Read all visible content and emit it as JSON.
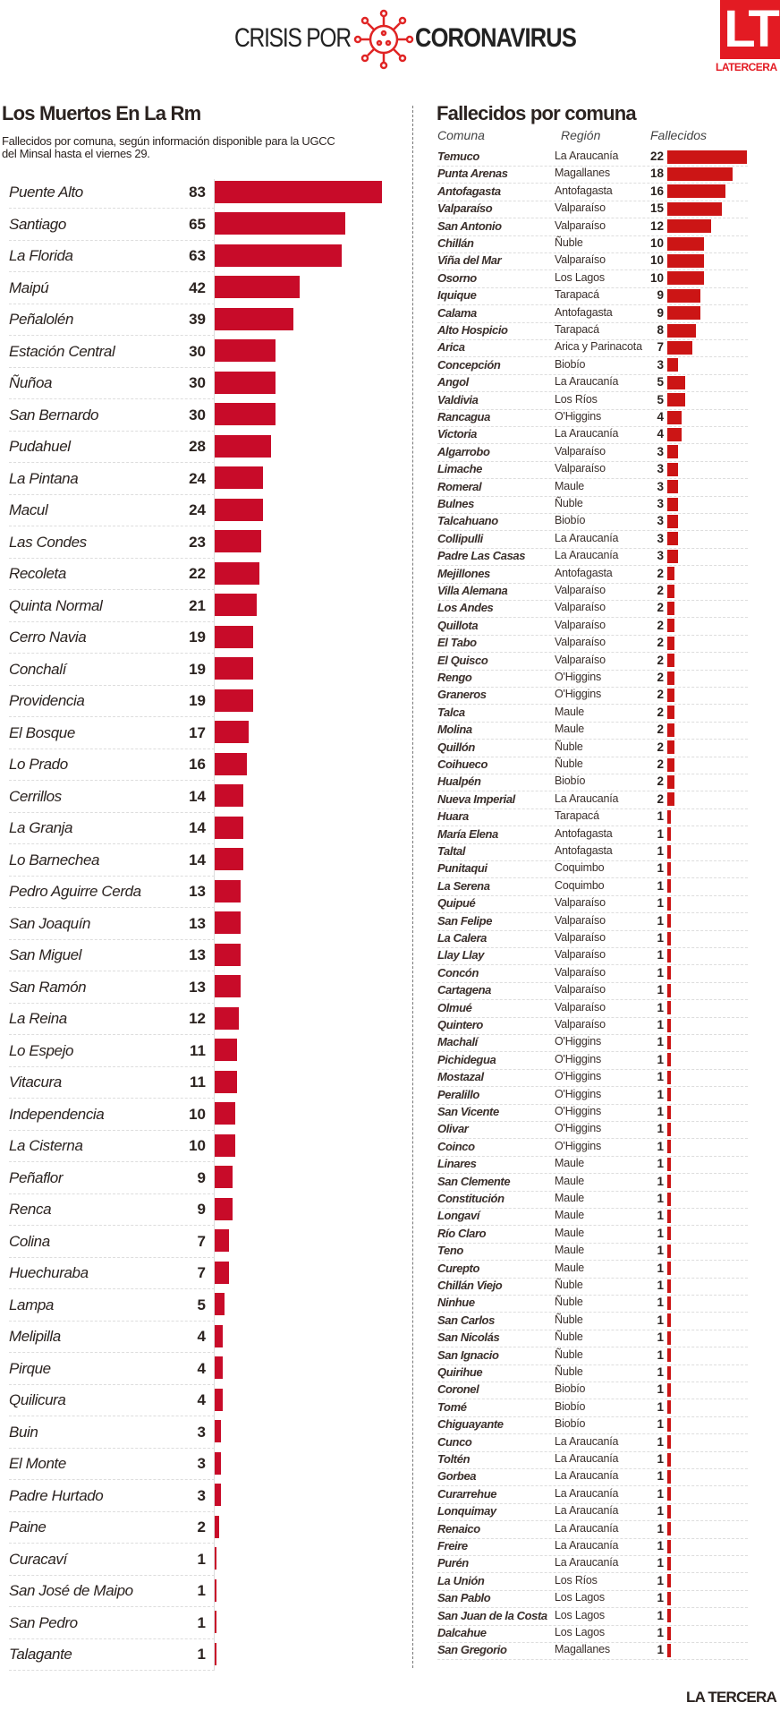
{
  "header": {
    "title_light": "CRISIS POR",
    "title_bold": "CORONAVIRUS",
    "logo": "LT",
    "logo_sub": "LATERCERA"
  },
  "footer": "LA TERCERA",
  "chart_data": [
    {
      "type": "bar",
      "title": "Los Muertos En La Rm",
      "subtitle": "Fallecidos por comuna, según información disponible para la UGCC del Minsal hasta el viernes 29.",
      "categories": [
        "Puente Alto",
        "Santiago",
        "La Florida",
        "Maipú",
        "Peñalolén",
        "Estación Central",
        "Ñuñoa",
        "San Bernardo",
        "Pudahuel",
        "La Pintana",
        "Macul",
        "Las Condes",
        "Recoleta",
        "Quinta Normal",
        "Cerro Navia",
        "Conchalí",
        "Providencia",
        "El Bosque",
        "Lo Prado",
        "Cerrillos",
        "La Granja",
        "Lo Barnechea",
        "Pedro Aguirre Cerda",
        "San Joaquín",
        "San Miguel",
        "San Ramón",
        "La Reina",
        "Lo Espejo",
        "Vitacura",
        "Independencia",
        "La Cisterna",
        "Peñaflor",
        "Renca",
        "Colina",
        "Huechuraba",
        "Lampa",
        "Melipilla",
        "Pirque",
        "Quilicura",
        "Buin",
        "El Monte",
        "Padre Hurtado",
        "Paine",
        "Curacaví",
        "San José de Maipo",
        "San Pedro",
        "Talagante"
      ],
      "values": [
        83,
        65,
        63,
        42,
        39,
        30,
        30,
        30,
        28,
        24,
        24,
        23,
        22,
        21,
        19,
        19,
        19,
        17,
        16,
        14,
        14,
        14,
        13,
        13,
        13,
        13,
        12,
        11,
        11,
        10,
        10,
        9,
        9,
        7,
        7,
        5,
        4,
        4,
        4,
        3,
        3,
        3,
        2,
        1,
        1,
        1,
        1
      ],
      "color": "#c80b29"
    },
    {
      "type": "table",
      "title": "Fallecidos por comuna",
      "columns": [
        "Comuna",
        "Región",
        "Fallecidos"
      ],
      "rows": [
        [
          "Temuco",
          "La Araucanía",
          22
        ],
        [
          "Punta Arenas",
          "Magallanes",
          18
        ],
        [
          "Antofagasta",
          "Antofagasta",
          16
        ],
        [
          "Valparaíso",
          "Valparaíso",
          15
        ],
        [
          "San Antonio",
          "Valparaíso",
          12
        ],
        [
          "Chillán",
          "Ñuble",
          10
        ],
        [
          "Viña del Mar",
          "Valparaíso",
          10
        ],
        [
          "Osorno",
          "Los Lagos",
          10
        ],
        [
          "Iquique",
          "Tarapacá",
          9
        ],
        [
          "Calama",
          "Antofagasta",
          9
        ],
        [
          "Alto Hospicio",
          "Tarapacá",
          8
        ],
        [
          "Arica",
          "Arica y Parinacota",
          7
        ],
        [
          "Concepción",
          "Biobío",
          3
        ],
        [
          "Angol",
          "La Araucanía",
          5
        ],
        [
          "Valdivia",
          "Los Ríos",
          5
        ],
        [
          "Rancagua",
          "O'Higgins",
          4
        ],
        [
          "Victoria",
          "La Araucanía",
          4
        ],
        [
          "Algarrobo",
          "Valparaíso",
          3
        ],
        [
          "Limache",
          "Valparaíso",
          3
        ],
        [
          "Romeral",
          "Maule",
          3
        ],
        [
          "Bulnes",
          "Ñuble",
          3
        ],
        [
          "Talcahuano",
          "Biobío",
          3
        ],
        [
          "Collipulli",
          "La Araucanía",
          3
        ],
        [
          "Padre Las Casas",
          "La Araucanía",
          3
        ],
        [
          "Mejillones",
          "Antofagasta",
          2
        ],
        [
          "Villa Alemana",
          "Valparaíso",
          2
        ],
        [
          "Los Andes",
          "Valparaíso",
          2
        ],
        [
          "Quillota",
          "Valparaíso",
          2
        ],
        [
          "El Tabo",
          "Valparaíso",
          2
        ],
        [
          "El Quisco",
          "Valparaíso",
          2
        ],
        [
          "Rengo",
          "O'Higgins",
          2
        ],
        [
          "Graneros",
          "O'Higgins",
          2
        ],
        [
          "Talca",
          "Maule",
          2
        ],
        [
          "Molina",
          "Maule",
          2
        ],
        [
          "Quillón",
          "Ñuble",
          2
        ],
        [
          "Coihueco",
          "Ñuble",
          2
        ],
        [
          "Hualpén",
          "Biobío",
          2
        ],
        [
          "Nueva Imperial",
          "La Araucanía",
          2
        ],
        [
          "Huara",
          "Tarapacá",
          1
        ],
        [
          "María Elena",
          "Antofagasta",
          1
        ],
        [
          "Taltal",
          "Antofagasta",
          1
        ],
        [
          "Punitaqui",
          "Coquimbo",
          1
        ],
        [
          "La Serena",
          "Coquimbo",
          1
        ],
        [
          "Quipué",
          "Valparaíso",
          1
        ],
        [
          "San Felipe",
          "Valparaíso",
          1
        ],
        [
          "La Calera",
          "Valparaíso",
          1
        ],
        [
          "Llay Llay",
          "Valparaíso",
          1
        ],
        [
          "Concón",
          "Valparaíso",
          1
        ],
        [
          "Cartagena",
          "Valparaíso",
          1
        ],
        [
          "Olmué",
          "Valparaíso",
          1
        ],
        [
          "Quintero",
          "Valparaíso",
          1
        ],
        [
          "Machalí",
          "O'Higgins",
          1
        ],
        [
          "Pichidegua",
          "O'Higgins",
          1
        ],
        [
          "Mostazal",
          "O'Higgins",
          1
        ],
        [
          "Peralillo",
          "O'Higgins",
          1
        ],
        [
          "San Vicente",
          "O'Higgins",
          1
        ],
        [
          "Olivar",
          "O'Higgins",
          1
        ],
        [
          "Coinco",
          "O'Higgins",
          1
        ],
        [
          "Linares",
          "Maule",
          1
        ],
        [
          "San Clemente",
          "Maule",
          1
        ],
        [
          "Constitución",
          "Maule",
          1
        ],
        [
          "Longaví",
          "Maule",
          1
        ],
        [
          "Río Claro",
          "Maule",
          1
        ],
        [
          "Teno",
          "Maule",
          1
        ],
        [
          "Curepto",
          "Maule",
          1
        ],
        [
          "Chillán Viejo",
          "Ñuble",
          1
        ],
        [
          "Ninhue",
          "Ñuble",
          1
        ],
        [
          "San Carlos",
          "Ñuble",
          1
        ],
        [
          "San Nicolás",
          "Ñuble",
          1
        ],
        [
          "San Ignacio",
          "Ñuble",
          1
        ],
        [
          "Quirihue",
          "Ñuble",
          1
        ],
        [
          "Coronel",
          "Biobío",
          1
        ],
        [
          "Tomé",
          "Biobío",
          1
        ],
        [
          "Chiguayante",
          "Biobío",
          1
        ],
        [
          "Cunco",
          "La Araucanía",
          1
        ],
        [
          "Toltén",
          "La Araucanía",
          1
        ],
        [
          "Gorbea",
          "La Araucanía",
          1
        ],
        [
          "Curarrehue",
          "La Araucanía",
          1
        ],
        [
          "Lonquimay",
          "La Araucanía",
          1
        ],
        [
          "Renaico",
          "La Araucanía",
          1
        ],
        [
          "Freire",
          "La Araucanía",
          1
        ],
        [
          "Purén",
          "La Araucanía",
          1
        ],
        [
          "La Unión",
          "Los Ríos",
          1
        ],
        [
          "San Pablo",
          "Los Lagos",
          1
        ],
        [
          "San Juan de la Costa",
          "Los Lagos",
          1
        ],
        [
          "Dalcahue",
          "Los Lagos",
          1
        ],
        [
          "San Gregorio",
          "Magallanes",
          1
        ]
      ],
      "color": "#cc1515"
    }
  ]
}
